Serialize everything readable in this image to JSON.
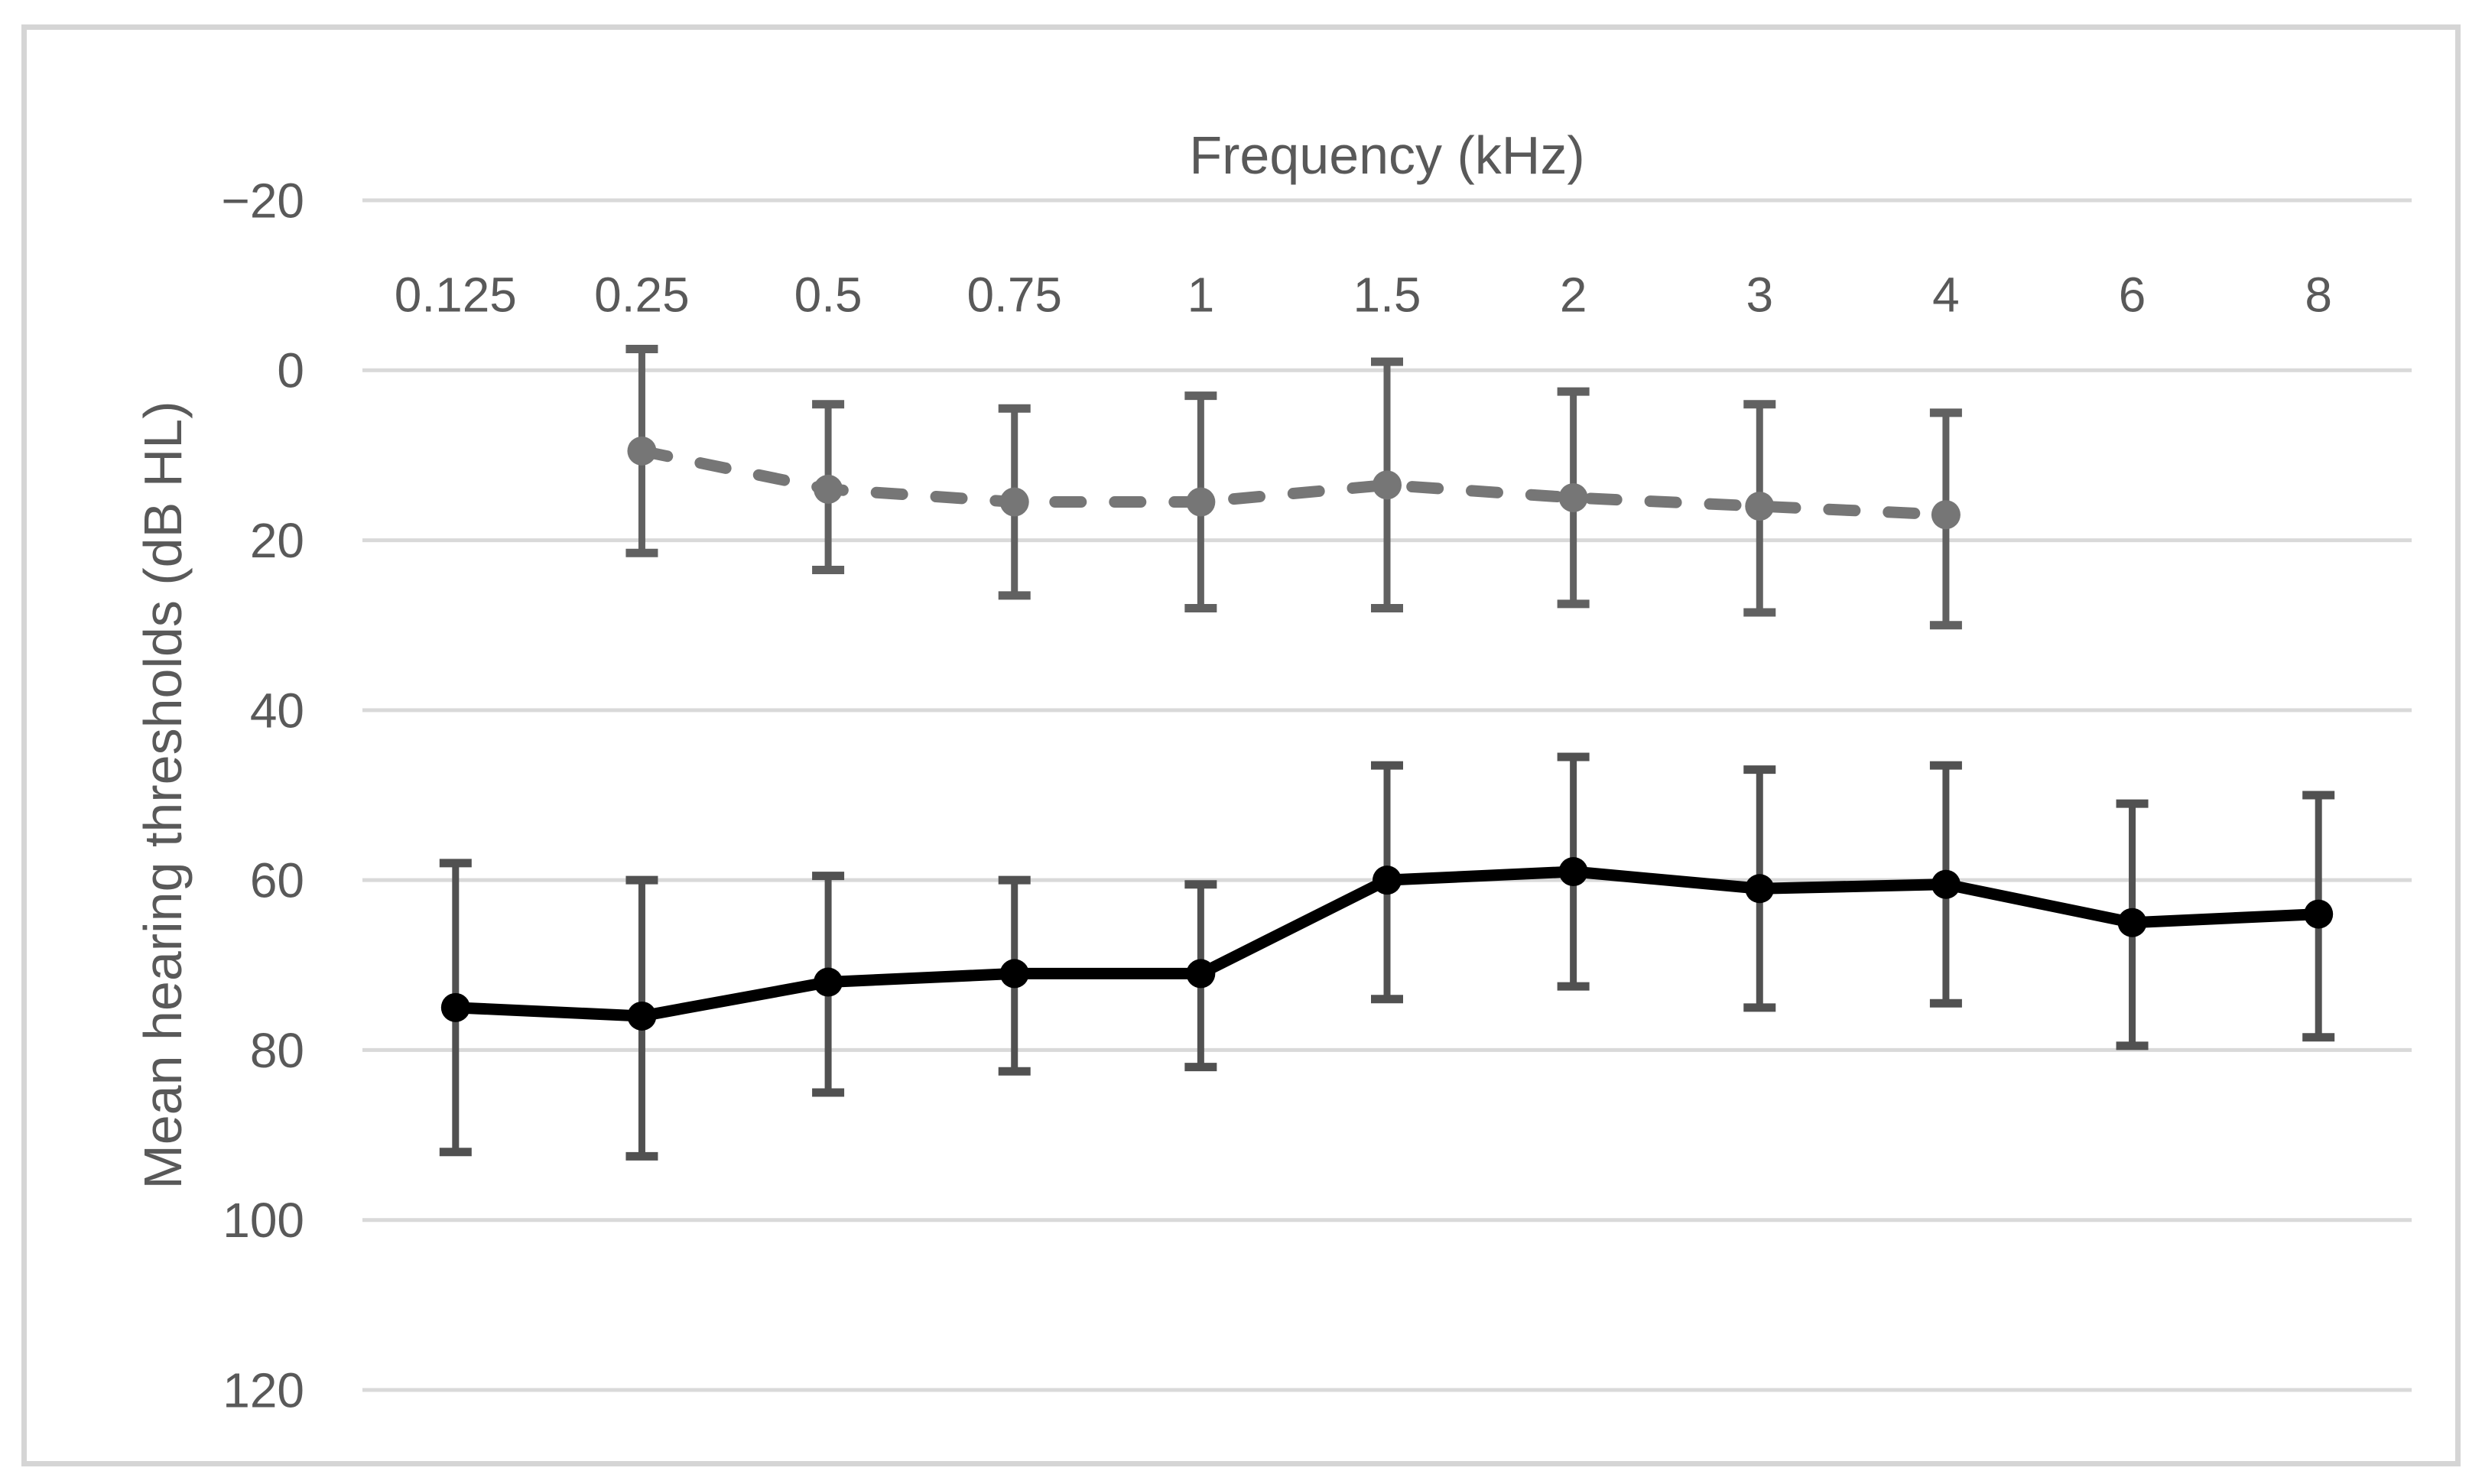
{
  "chart_data": {
    "type": "line",
    "x_axis_title": "Frequency (kHz)",
    "y_axis_title": "Mean hearing thresholds (dB HL)",
    "categories": [
      "0.125",
      "0.25",
      "0.5",
      "0.75",
      "1",
      "1.5",
      "2",
      "3",
      "4",
      "6",
      "8"
    ],
    "y_axis": {
      "min": -20,
      "max": 120,
      "step": 20,
      "inverted": true,
      "tick_labels": [
        "−20",
        "0",
        "20",
        "40",
        "60",
        "80",
        "100",
        "120"
      ],
      "tick_values": [
        -20,
        0,
        20,
        40,
        60,
        80,
        100,
        120
      ]
    },
    "grid": "horizontal",
    "legend": "none",
    "series": [
      {
        "id": "gray-dashed-series",
        "line_style": "dashed",
        "color": "#767676",
        "error_bar_color": "#616161",
        "values": [
          null,
          9.5,
          14,
          15.5,
          15.5,
          13.5,
          15,
          16,
          17,
          null,
          null
        ],
        "error_low": [
          null,
          -2.5,
          4,
          4.5,
          3,
          -1,
          2.5,
          4,
          5,
          null,
          null
        ],
        "error_high": [
          null,
          21.5,
          23.5,
          26.5,
          28,
          28,
          27.5,
          28.5,
          30,
          null,
          null
        ]
      },
      {
        "id": "black-solid-series",
        "line_style": "solid",
        "color": "#000000",
        "error_bar_color": "#515151",
        "values": [
          75,
          76,
          72,
          71,
          71,
          60,
          59,
          61,
          60.5,
          65,
          64
        ],
        "error_low": [
          58,
          60,
          59.5,
          60,
          60.5,
          46.5,
          45.5,
          47,
          46.5,
          51,
          50
        ],
        "error_high": [
          92,
          92.5,
          85,
          82.5,
          82,
          74,
          72.5,
          75,
          74.5,
          79.5,
          78.5
        ]
      }
    ],
    "style": {
      "gridline_color": "#d9d9d9",
      "border_color": "#d5d5d5",
      "text_color": "#595959",
      "background_color": "#ffffff"
    }
  }
}
